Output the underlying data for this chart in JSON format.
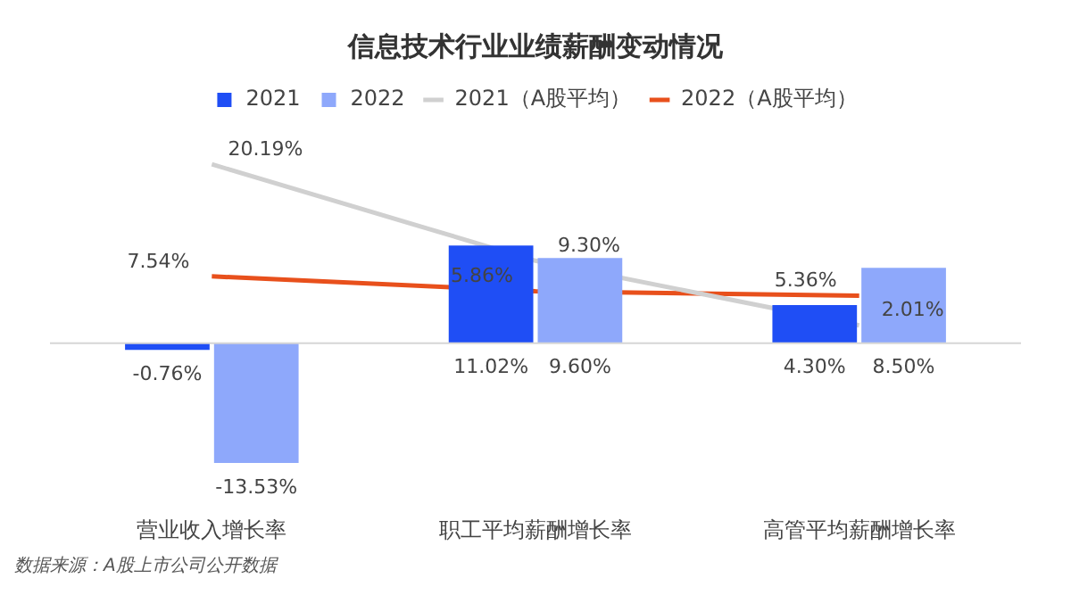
{
  "chart_data": {
    "type": "bar",
    "title": "信息技术行业业绩薪酬变动情况",
    "categories": [
      "营业收入增长率",
      "职工平均薪酬增长率",
      "高管平均薪酬增长率"
    ],
    "series": [
      {
        "name": "2021",
        "color": "#1f4ef5",
        "values": [
          -0.76,
          11.02,
          4.3
        ],
        "value_labels": [
          "-0.76%",
          "11.02%",
          "4.30%"
        ]
      },
      {
        "name": "2022",
        "color": "#8ea8fb",
        "values": [
          -13.53,
          9.6,
          8.5
        ],
        "value_labels": [
          "-13.53%",
          "9.60%",
          "8.50%"
        ]
      },
      {
        "name": "2021（A股平均）",
        "type": "line",
        "color": "#d0d0d0",
        "values": [
          20.19,
          9.3,
          2.01
        ],
        "value_labels": [
          "20.19%",
          "9.30%",
          "2.01%"
        ]
      },
      {
        "name": "2022（A股平均）",
        "type": "line",
        "color": "#e8501c",
        "values": [
          7.54,
          5.86,
          5.36
        ],
        "value_labels": [
          "7.54%",
          "5.86%",
          "5.36%"
        ]
      }
    ],
    "legend": "top",
    "grid": false,
    "marker": "none",
    "annotations": [
      "数据来源：A股上市公司公开数据"
    ]
  }
}
